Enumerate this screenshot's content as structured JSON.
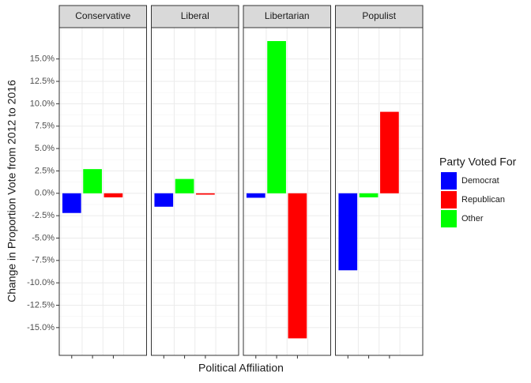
{
  "chart_data": {
    "type": "bar",
    "facets": [
      "Conservative",
      "Liberal",
      "Libertarian",
      "Populist"
    ],
    "x_label": "Political Affiliation",
    "y_label": "Change in Proportion Vote from 2012 to 2016",
    "legend_title": "Party Voted For",
    "legend_order": [
      0,
      2,
      1
    ],
    "series": [
      {
        "name": "Democrat",
        "color": "#0000ff",
        "values": [
          -2.2,
          -1.5,
          -0.5,
          -8.6
        ]
      },
      {
        "name": "Other",
        "color": "#00ff00",
        "values": [
          2.7,
          1.6,
          17.0,
          -0.45
        ]
      },
      {
        "name": "Republican",
        "color": "#ff0000",
        "values": [
          -0.45,
          -0.15,
          -16.2,
          9.1
        ]
      }
    ],
    "ylim": [
      -18.1,
      18.5
    ],
    "yticks": [
      {
        "value": -15,
        "label": "-15.0%"
      },
      {
        "value": -12.5,
        "label": "-12.5%"
      },
      {
        "value": -10,
        "label": "-10.0%"
      },
      {
        "value": -7.5,
        "label": "-7.5%"
      },
      {
        "value": -5,
        "label": "-5.0%"
      },
      {
        "value": -2.5,
        "label": "-2.5%"
      },
      {
        "value": 0,
        "label": "0.0%"
      },
      {
        "value": 2.5,
        "label": "2.5%"
      },
      {
        "value": 5,
        "label": "5.0%"
      },
      {
        "value": 7.5,
        "label": "7.5%"
      },
      {
        "value": 10,
        "label": "10.0%"
      },
      {
        "value": 12.5,
        "label": "12.5%"
      },
      {
        "value": 15,
        "label": "15.0%"
      }
    ],
    "grid": true
  }
}
